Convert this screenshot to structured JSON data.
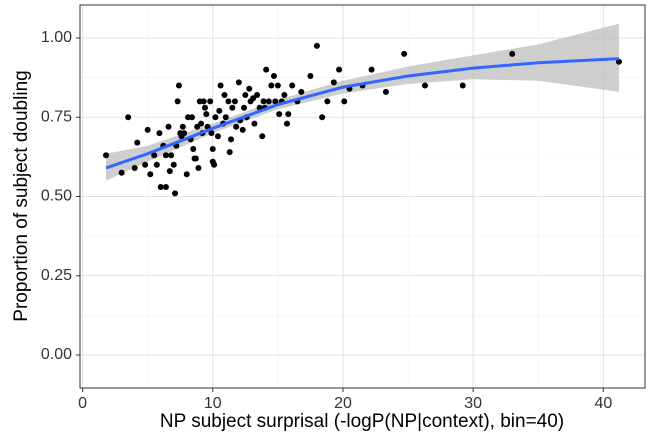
{
  "chart_data": {
    "type": "scatter",
    "x_label": "NP subject surprisal (-logP(NP|context), bin=40)",
    "y_label": "Proportion of subject doubling",
    "xlim": [
      -0.2,
      43.2
    ],
    "ylim": [
      -0.104,
      1.104
    ],
    "xticks": [
      0,
      10,
      20,
      30,
      40
    ],
    "yticks": [
      {
        "value": 0,
        "label": "0.00"
      },
      {
        "value": 0.25,
        "label": "0.25"
      },
      {
        "value": 0.5,
        "label": "0.50"
      },
      {
        "value": 0.75,
        "label": "0.75"
      },
      {
        "value": 1,
        "label": "1.00"
      }
    ],
    "grid": true,
    "color": "#000000",
    "x": [
      1.8,
      3.0,
      3.5,
      4.0,
      4.2,
      4.8,
      5.0,
      5.2,
      5.5,
      5.7,
      5.9,
      6.0,
      6.2,
      6.4,
      6.4,
      6.6,
      6.7,
      6.8,
      7.0,
      7.1,
      7.2,
      7.3,
      7.4,
      7.5,
      7.6,
      7.7,
      7.8,
      8.0,
      8.1,
      8.3,
      8.4,
      8.5,
      8.6,
      8.7,
      8.8,
      8.9,
      9.0,
      9.1,
      9.2,
      9.3,
      9.4,
      9.5,
      9.6,
      9.8,
      9.9,
      10.0,
      10.0,
      10.1,
      10.2,
      10.4,
      10.5,
      10.6,
      10.8,
      10.9,
      11.0,
      11.2,
      11.3,
      11.4,
      11.5,
      11.7,
      11.8,
      12.0,
      12.1,
      12.3,
      12.4,
      12.5,
      12.6,
      12.8,
      12.9,
      13.1,
      13.2,
      13.4,
      13.6,
      13.8,
      13.9,
      14.0,
      14.1,
      14.3,
      14.5,
      14.7,
      14.8,
      15.0,
      15.1,
      15.3,
      15.5,
      15.7,
      15.8,
      16.1,
      16.5,
      16.8,
      17.5,
      18.0,
      18.4,
      18.8,
      19.3,
      19.7,
      20.1,
      20.5,
      21.5,
      22.2,
      23.3,
      24.7,
      26.3,
      29.2,
      33.0,
      41.2
    ],
    "values": [
      0.63,
      0.575,
      0.75,
      0.59,
      0.67,
      0.6,
      0.71,
      0.57,
      0.63,
      0.6,
      0.7,
      0.53,
      0.66,
      0.63,
      0.53,
      0.72,
      0.58,
      0.63,
      0.6,
      0.51,
      0.66,
      0.8,
      0.85,
      0.7,
      0.69,
      0.72,
      0.7,
      0.57,
      0.75,
      0.68,
      0.75,
      0.65,
      0.62,
      0.62,
      0.72,
      0.59,
      0.8,
      0.73,
      0.7,
      0.8,
      0.78,
      0.76,
      0.72,
      0.8,
      0.7,
      0.65,
      0.61,
      0.6,
      0.75,
      0.69,
      0.77,
      0.85,
      0.73,
      0.82,
      0.75,
      0.8,
      0.64,
      0.68,
      0.78,
      0.8,
      0.72,
      0.86,
      0.74,
      0.71,
      0.78,
      0.82,
      0.75,
      0.84,
      0.8,
      0.81,
      0.73,
      0.82,
      0.78,
      0.69,
      0.8,
      0.78,
      0.9,
      0.8,
      0.85,
      0.88,
      0.8,
      0.85,
      0.76,
      0.8,
      0.82,
      0.73,
      0.76,
      0.85,
      0.8,
      0.83,
      0.88,
      0.975,
      0.75,
      0.8,
      0.86,
      0.9,
      0.8,
      0.84,
      0.85,
      0.9,
      0.83,
      0.95,
      0.85,
      0.85,
      0.95,
      0.925
    ],
    "smooth": {
      "color": "#3366ff",
      "band_color": "#bdbdbd",
      "x": [
        1.8,
        5,
        10,
        15,
        20,
        25,
        30,
        35,
        41.2
      ],
      "values": [
        0.59,
        0.635,
        0.715,
        0.79,
        0.845,
        0.88,
        0.905,
        0.922,
        0.935
      ],
      "lower": [
        0.55,
        0.61,
        0.7,
        0.775,
        0.825,
        0.855,
        0.87,
        0.865,
        0.83
      ],
      "upper": [
        0.635,
        0.66,
        0.73,
        0.805,
        0.865,
        0.91,
        0.945,
        0.98,
        1.045
      ]
    }
  }
}
